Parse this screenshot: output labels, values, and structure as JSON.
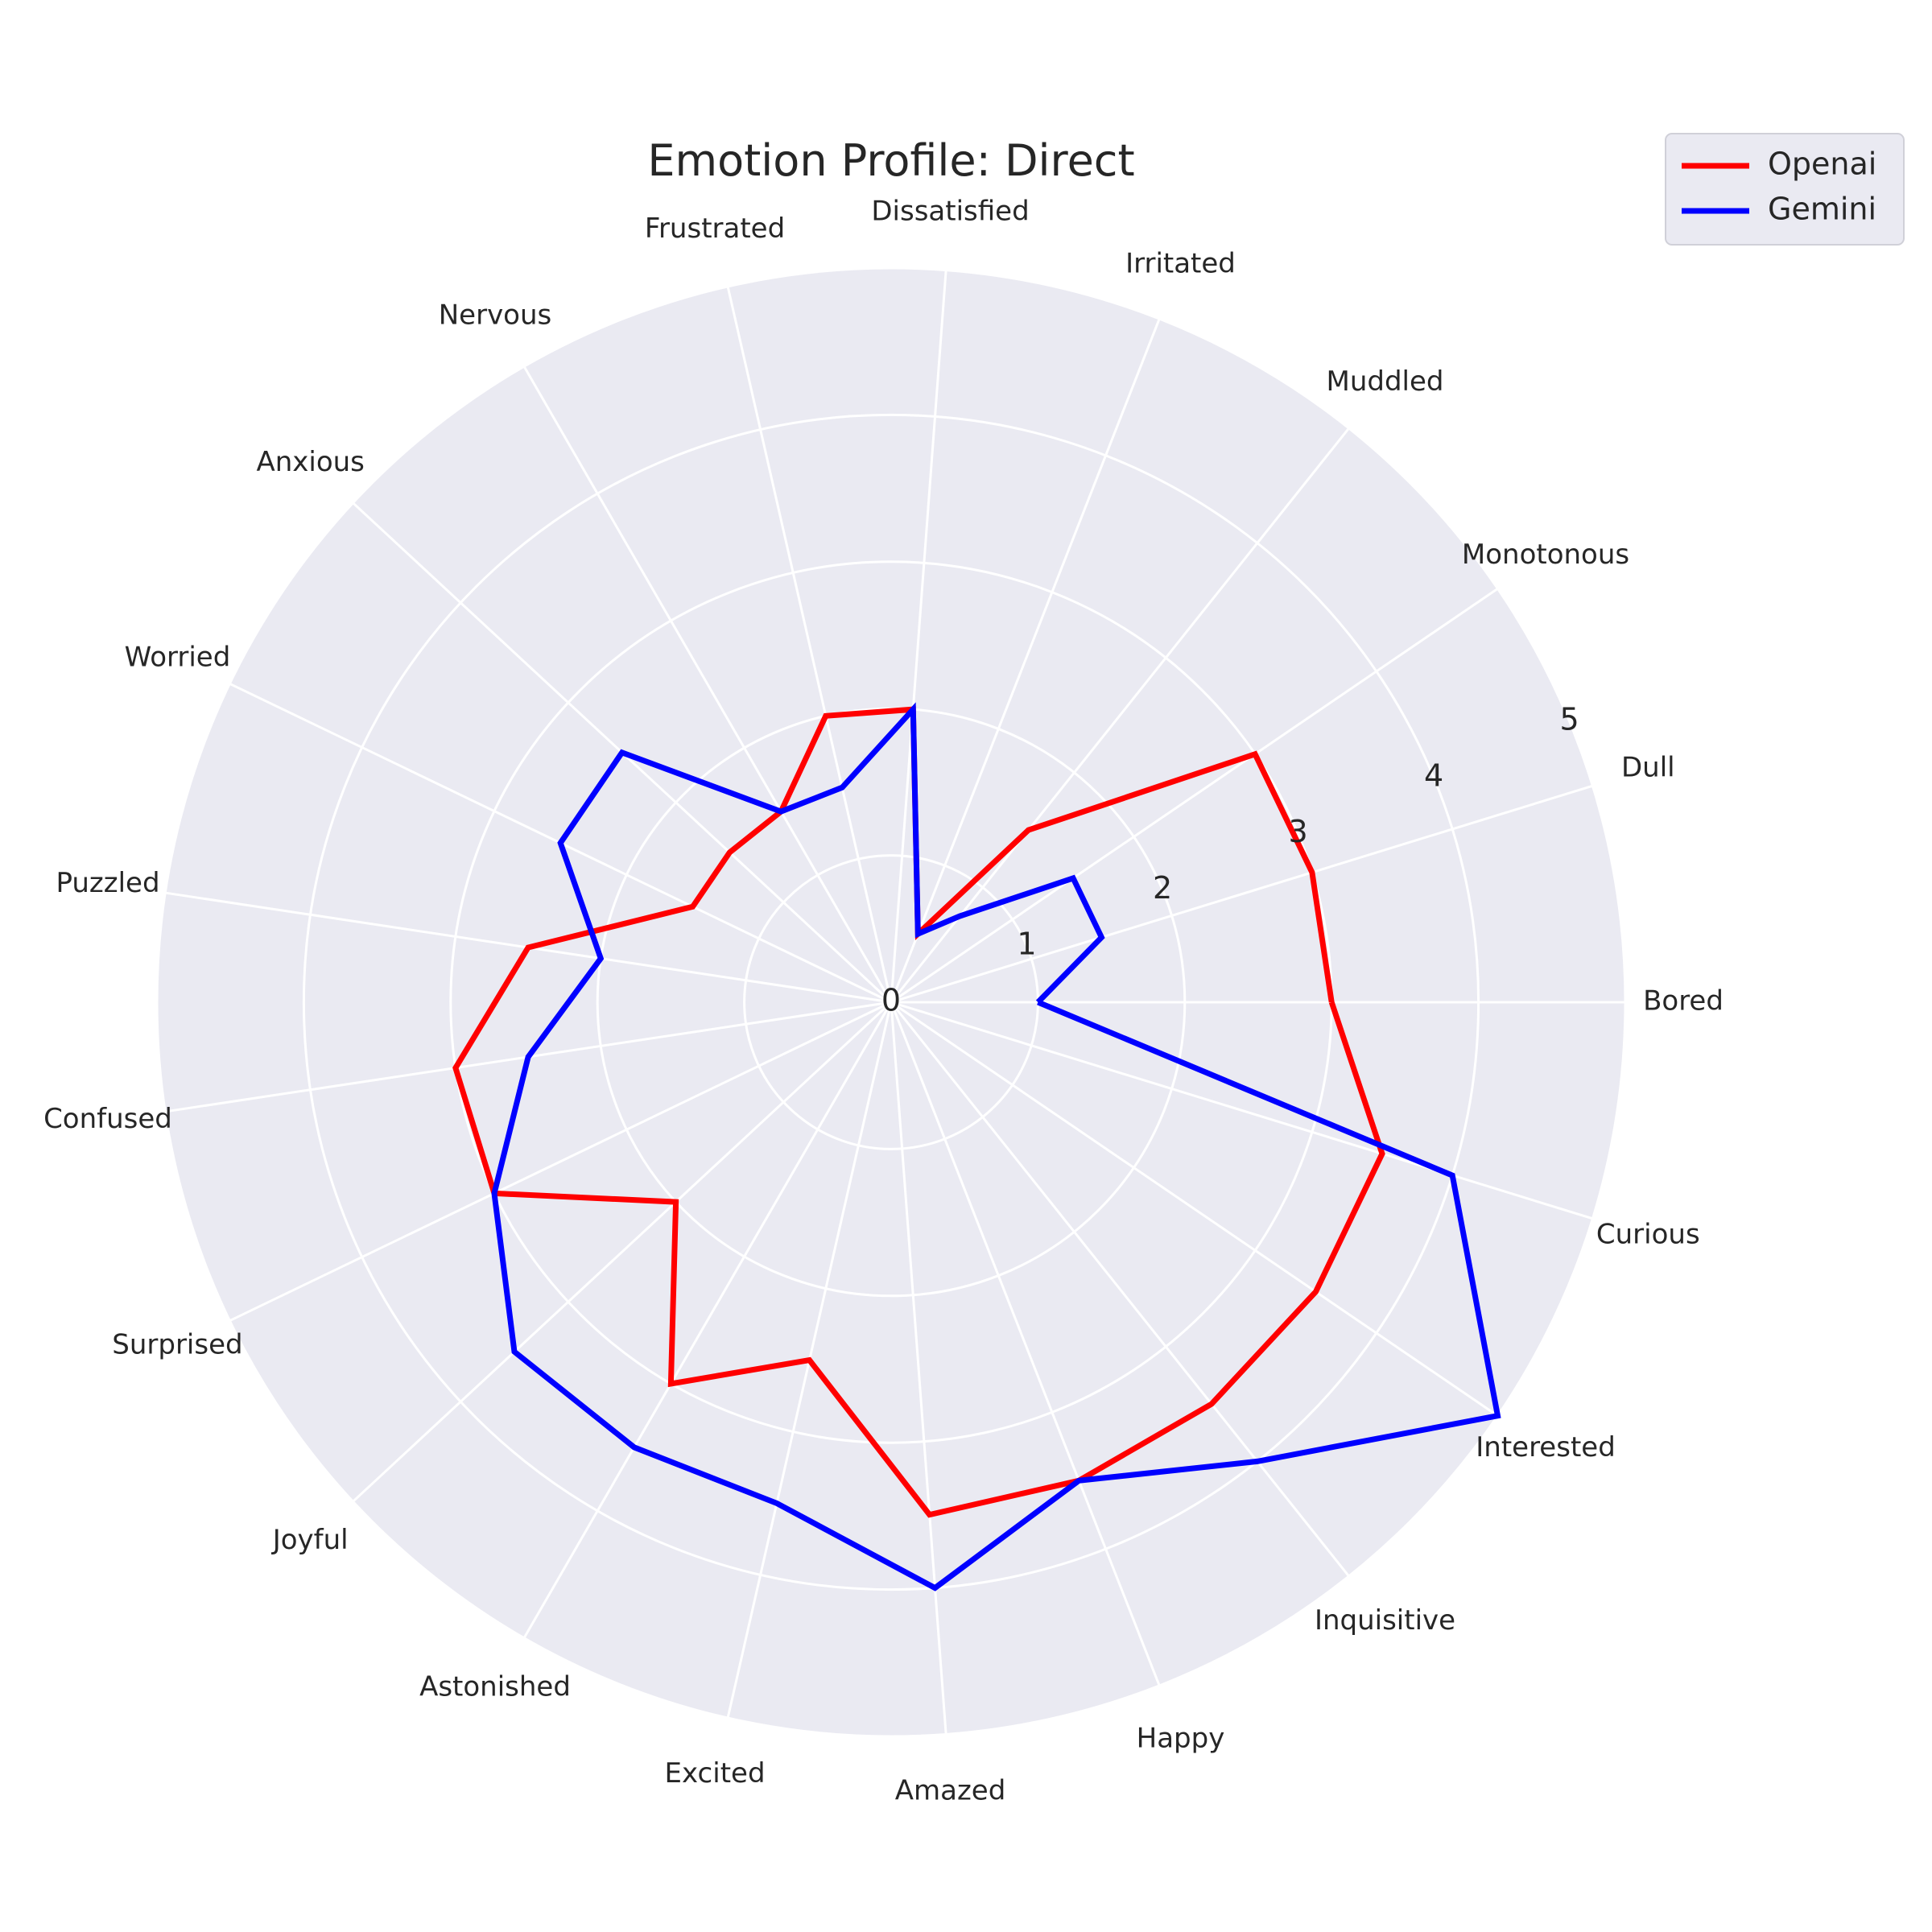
{
  "chart_data": {
    "type": "radar",
    "title": "Emotion Profile: Direct",
    "categories": [
      "Bored",
      "Dull",
      "Monotonous",
      "Muddled",
      "Irritated",
      "Dissatisfied",
      "Frustrated",
      "Nervous",
      "Anxious",
      "Worried",
      "Puzzled",
      "Confused",
      "Surprised",
      "Joyful",
      "Astonished",
      "Excited",
      "Amazed",
      "Happy",
      "Inquisitive",
      "Interested",
      "Curious"
    ],
    "rlim": [
      0,
      5
    ],
    "rticks": [
      "0",
      "1",
      "2",
      "3",
      "4",
      "5"
    ],
    "grid": true,
    "legend_position": "top-right",
    "series": [
      {
        "name": "Openai",
        "color": "#ff0000",
        "values": [
          3.0,
          3.0,
          3.0,
          1.5,
          0.5,
          2.0,
          2.0,
          1.5,
          1.5,
          1.5,
          2.5,
          3.0,
          3.0,
          2.0,
          3.0,
          2.5,
          3.5,
          3.5,
          3.5,
          3.5,
          3.5
        ]
      },
      {
        "name": "Gemini",
        "color": "#0000ff",
        "values": [
          1.0,
          1.5,
          1.5,
          0.75,
          0.5,
          2.0,
          1.5,
          1.5,
          2.5,
          2.5,
          2.0,
          2.5,
          3.0,
          3.5,
          3.5,
          3.5,
          4.0,
          3.5,
          4.0,
          5.0,
          4.0
        ]
      }
    ]
  }
}
